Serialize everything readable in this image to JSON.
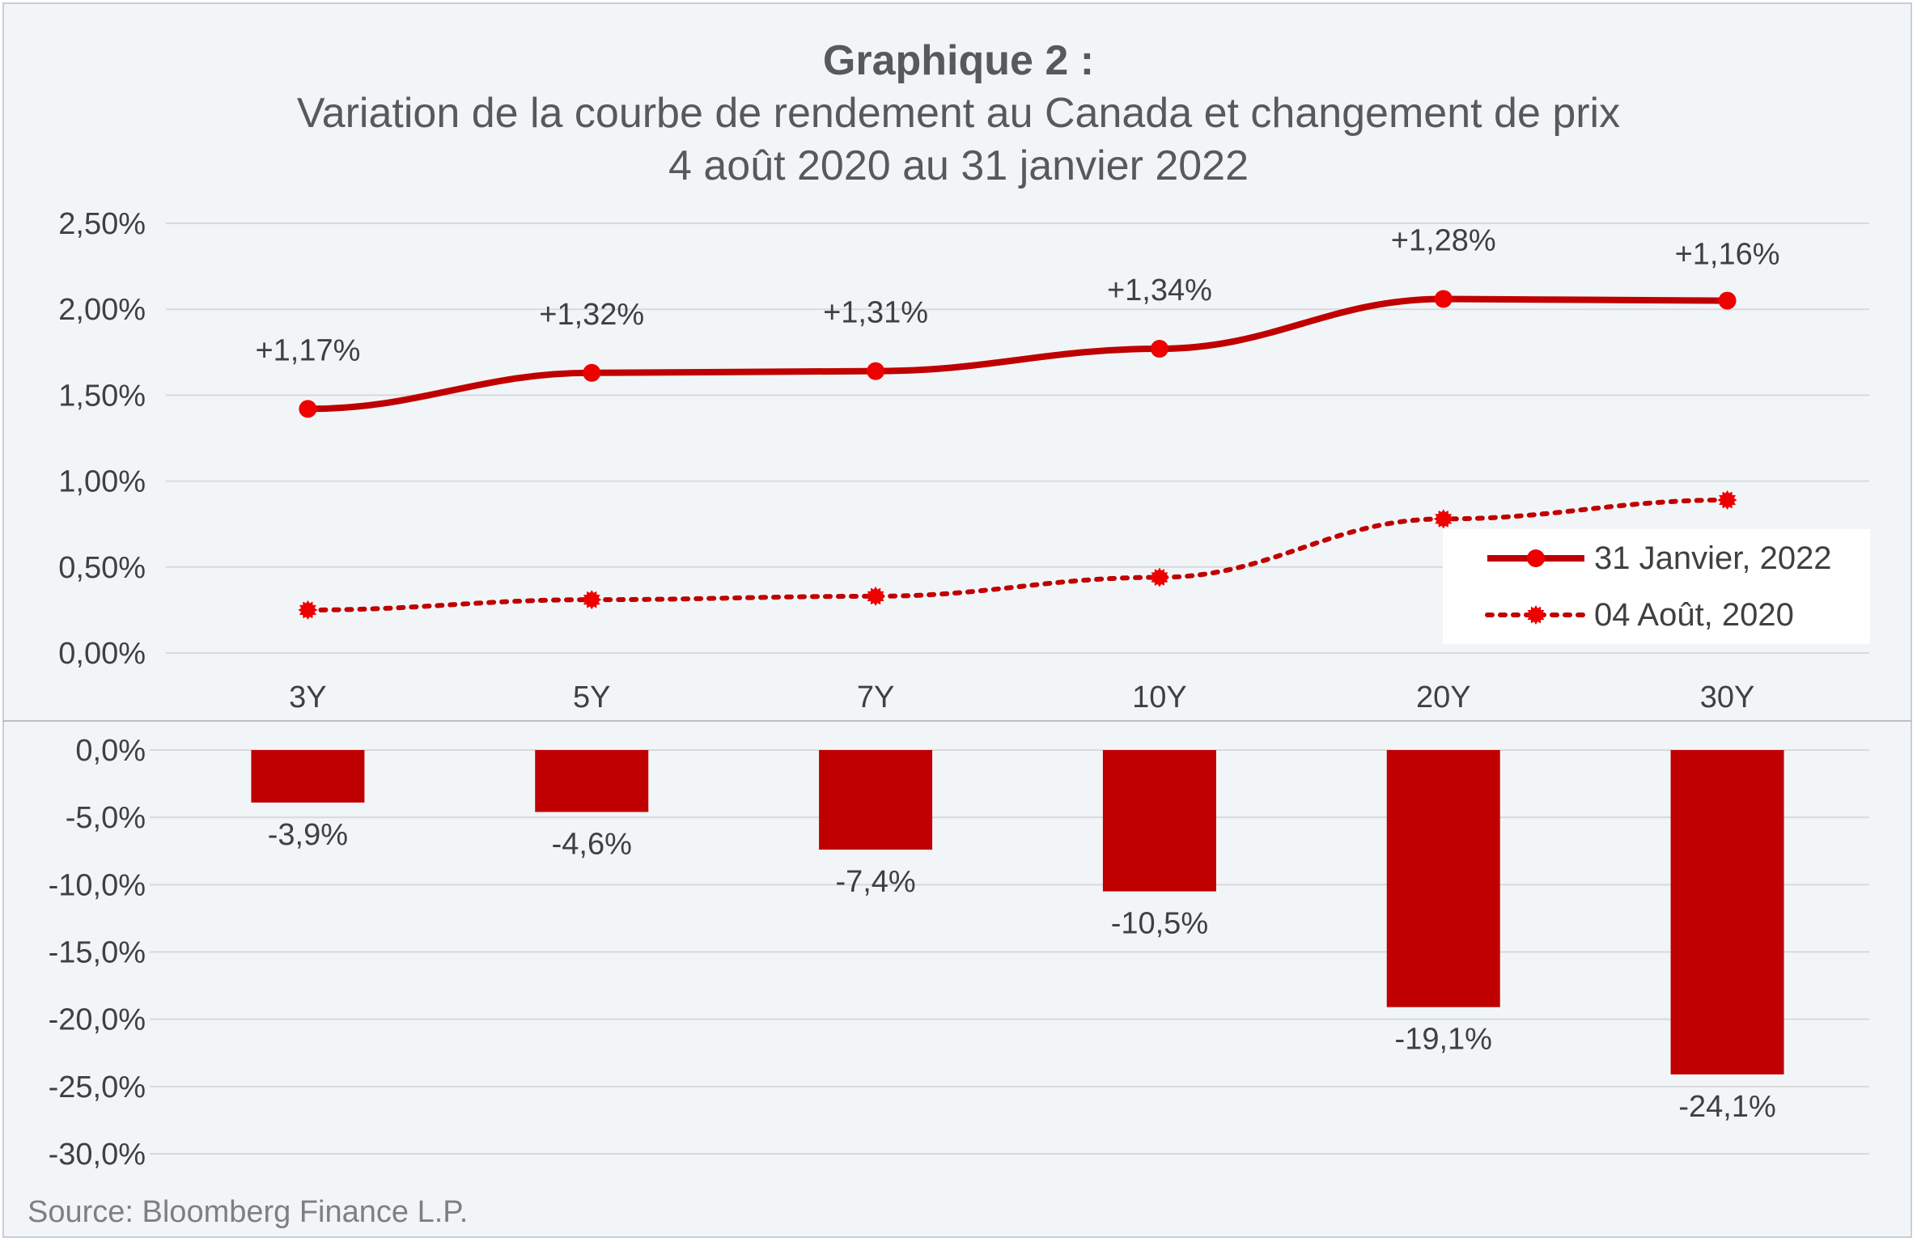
{
  "title": "Graphique 2 :",
  "subtitle": "Variation de la courbe de rendement au Canada et changement de prix",
  "subtitle2": "4 août 2020 au 31 janvier 2022",
  "source": "Source: Bloomberg Finance L.P.",
  "colors": {
    "accent": "#c00000",
    "grid": "#d9d9d9",
    "text": "#404040",
    "background": "#f2f5f8"
  },
  "chart_data": [
    {
      "type": "line",
      "categories": [
        "3Y",
        "5Y",
        "7Y",
        "10Y",
        "20Y",
        "30Y"
      ],
      "ylim": [
        0,
        2.5
      ],
      "yticks": [
        "0,00%",
        "0,50%",
        "1,00%",
        "1,50%",
        "2,00%",
        "2,50%"
      ],
      "legend_position": "right",
      "grid": true,
      "series": [
        {
          "name": "31 Janvier, 2022",
          "style": "solid",
          "values": [
            1.42,
            1.63,
            1.64,
            1.77,
            2.06,
            2.05
          ],
          "labels": [
            "+1,17%",
            "+1,32%",
            "+1,31%",
            "+1,34%",
            "+1,28%",
            "+1,16%"
          ]
        },
        {
          "name": "04 Août, 2020",
          "style": "dotted",
          "values": [
            0.25,
            0.31,
            0.33,
            0.44,
            0.78,
            0.89
          ]
        }
      ]
    },
    {
      "type": "bar",
      "categories": [
        "3Y",
        "5Y",
        "7Y",
        "10Y",
        "20Y",
        "30Y"
      ],
      "ylim": [
        -30,
        0
      ],
      "yticks": [
        "0,0%",
        "-5,0%",
        "-10,0%",
        "-15,0%",
        "-20,0%",
        "-25,0%",
        "-30,0%"
      ],
      "grid": true,
      "values": [
        -3.9,
        -4.6,
        -7.4,
        -10.5,
        -19.1,
        -24.1
      ],
      "labels": [
        "-3,9%",
        "-4,6%",
        "-7,4%",
        "-10,5%",
        "-19,1%",
        "-24,1%"
      ]
    }
  ]
}
